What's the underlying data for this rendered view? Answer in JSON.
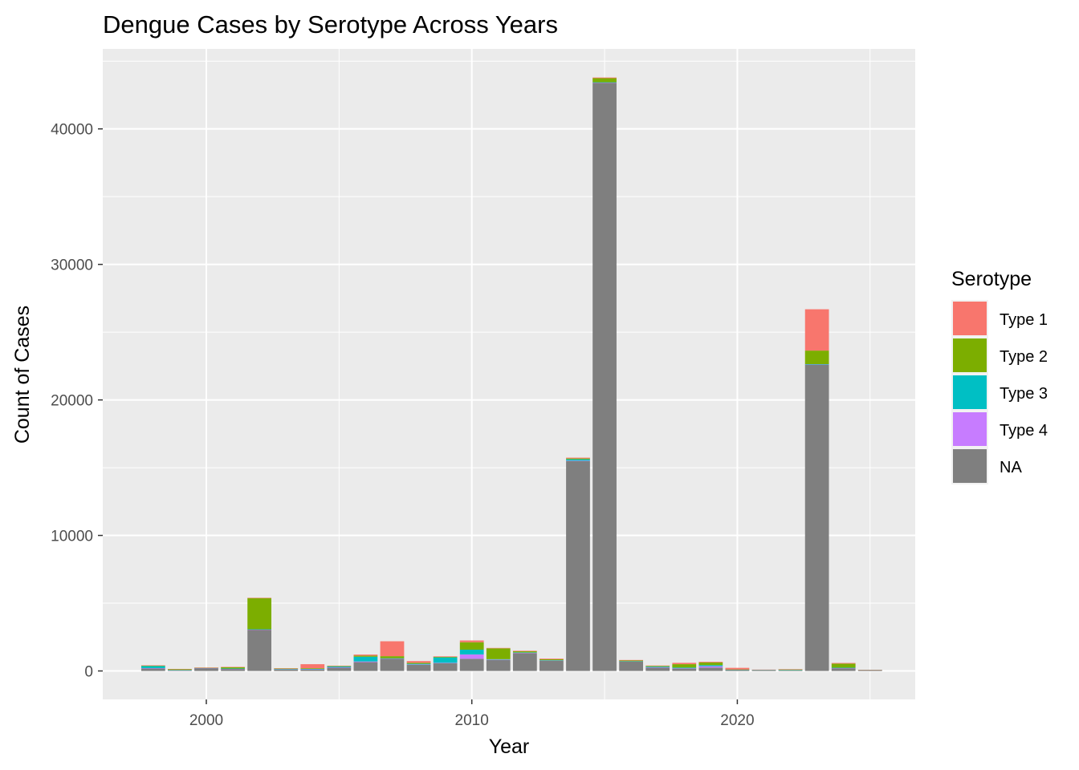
{
  "chart_data": {
    "type": "bar",
    "stacked": true,
    "title": "Dengue Cases by Serotype Across Years",
    "xlabel": "Year",
    "ylabel": "Count of Cases",
    "xlim": [
      1996.1,
      2026.7
    ],
    "ylim": [
      -2100,
      45900
    ],
    "x_ticks": [
      2000,
      2010,
      2020
    ],
    "y_ticks": [
      0,
      10000,
      20000,
      30000,
      40000
    ],
    "y_tick_labels": [
      "0",
      "10000",
      "20000",
      "30000",
      "40000"
    ],
    "x_tick_labels": [
      "2000",
      "2010",
      "2020"
    ],
    "grid": true,
    "legend": {
      "title": "Serotype",
      "position": "right"
    },
    "x": [
      1998,
      1999,
      2000,
      2001,
      2002,
      2003,
      2004,
      2005,
      2006,
      2007,
      2008,
      2009,
      2010,
      2011,
      2012,
      2013,
      2014,
      2015,
      2016,
      2017,
      2018,
      2019,
      2020,
      2021,
      2022,
      2023,
      2024,
      2025
    ],
    "series": [
      {
        "name": "Type 1",
        "color": "#F8766D",
        "values": [
          30,
          20,
          10,
          20,
          20,
          20,
          300,
          30,
          80,
          1100,
          130,
          40,
          130,
          30,
          40,
          50,
          60,
          50,
          40,
          30,
          100,
          50,
          120,
          10,
          10,
          3050,
          50,
          10
        ]
      },
      {
        "name": "Type 2",
        "color": "#7CAE00",
        "values": [
          30,
          60,
          10,
          100,
          2300,
          40,
          50,
          20,
          80,
          150,
          70,
          40,
          550,
          800,
          80,
          70,
          60,
          300,
          50,
          50,
          250,
          200,
          10,
          20,
          50,
          1000,
          300,
          10
        ]
      },
      {
        "name": "Type 3",
        "color": "#00BFC4",
        "values": [
          150,
          20,
          10,
          20,
          20,
          20,
          20,
          70,
          350,
          20,
          50,
          400,
          350,
          30,
          30,
          20,
          100,
          20,
          10,
          50,
          50,
          80,
          10,
          10,
          10,
          20,
          20,
          10
        ]
      },
      {
        "name": "Type 4",
        "color": "#C77CFF",
        "values": [
          30,
          10,
          10,
          10,
          10,
          10,
          40,
          20,
          50,
          20,
          20,
          20,
          320,
          20,
          20,
          10,
          20,
          20,
          10,
          20,
          20,
          100,
          10,
          10,
          10,
          20,
          20,
          10
        ]
      },
      {
        "name": "NA",
        "color": "#7F7F7F",
        "values": [
          180,
          40,
          210,
          150,
          3050,
          110,
          90,
          250,
          650,
          900,
          460,
          580,
          900,
          820,
          1320,
          760,
          15500,
          43400,
          700,
          250,
          180,
          250,
          80,
          50,
          50,
          22600,
          200,
          50
        ]
      }
    ]
  }
}
